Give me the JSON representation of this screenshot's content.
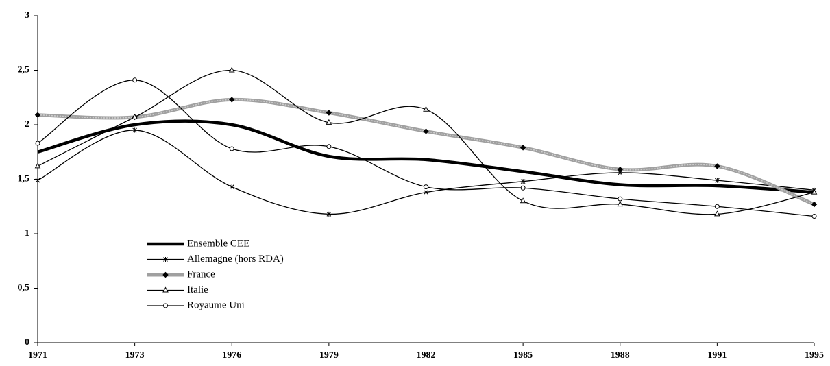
{
  "chart_data": {
    "type": "line",
    "categories": [
      "1971",
      "1973",
      "1976",
      "1979",
      "1982",
      "1985",
      "1988",
      "1991",
      "1995"
    ],
    "ylim": [
      0,
      3
    ],
    "yticks": [
      0,
      {
        "value": 0.5,
        "label": "0,5"
      },
      1,
      {
        "value": 1.5,
        "label": "1,5"
      },
      2,
      {
        "value": 2.5,
        "label": "2,5"
      },
      3
    ],
    "smooth": true,
    "series": [
      {
        "name": "Ensemble CEE",
        "color": "#000000",
        "marker": "none",
        "values": [
          1.75,
          2.0,
          2.0,
          1.71,
          1.68,
          1.57,
          1.45,
          1.44,
          1.38
        ]
      },
      {
        "name": "Allemagne (hors RDA)",
        "color": "#000000",
        "marker": "star",
        "values": [
          1.49,
          1.95,
          1.43,
          1.18,
          1.38,
          1.48,
          1.56,
          1.49,
          1.4
        ]
      },
      {
        "name": "France",
        "color": "#a0a0a0",
        "marker": "diamond",
        "values": [
          2.09,
          2.07,
          2.23,
          2.11,
          1.94,
          1.79,
          1.59,
          1.62,
          1.27
        ]
      },
      {
        "name": "Italie",
        "color": "#000000",
        "marker": "triangle",
        "values": [
          1.62,
          2.07,
          2.5,
          2.02,
          2.14,
          1.3,
          1.27,
          1.18,
          1.38
        ]
      },
      {
        "name": "Royaume Uni",
        "color": "#000000",
        "marker": "circle",
        "values": [
          1.83,
          2.41,
          1.78,
          1.8,
          1.43,
          1.42,
          1.32,
          1.25,
          1.16
        ]
      }
    ]
  }
}
